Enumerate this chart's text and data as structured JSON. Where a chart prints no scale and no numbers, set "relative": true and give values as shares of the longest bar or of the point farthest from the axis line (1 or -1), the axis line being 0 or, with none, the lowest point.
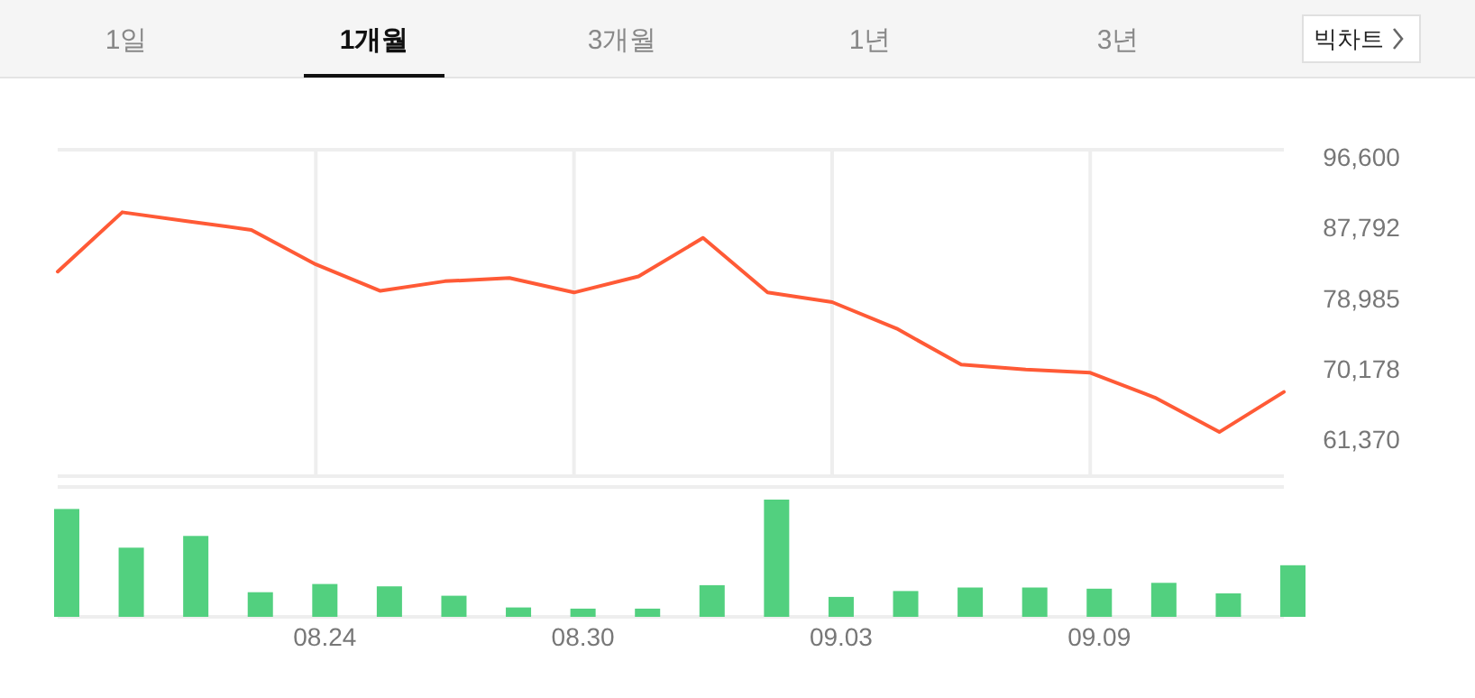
{
  "chart_data": [
    {
      "type": "other",
      "annotations": [
        "1일",
        "1개월",
        "3개월",
        "1년",
        "3년",
        "빅차트"
      ]
    },
    {
      "type": "line",
      "categories": [
        null,
        null,
        null,
        null,
        "08.24",
        null,
        null,
        null,
        "08.30",
        null,
        null,
        null,
        "09.03",
        null,
        null,
        null,
        "09.09",
        null,
        null,
        null
      ],
      "series": [
        {
          "color": "#ff5a36",
          "values": [
            82300,
            89700,
            88600,
            87500,
            83200,
            79900,
            81100,
            81500,
            79700,
            81700,
            86500,
            79700,
            78500,
            75200,
            70700,
            70100,
            69700,
            66600,
            62300,
            67300
          ]
        }
      ],
      "ylim": [
        56800,
        97500
      ],
      "yticks": [
        {
          "value": 96600,
          "label": "96,600"
        },
        {
          "value": 87792,
          "label": "87,792"
        },
        {
          "value": 78985,
          "label": "78,985"
        },
        {
          "value": 70178,
          "label": "70,178"
        },
        {
          "value": 61370,
          "label": "61,370"
        }
      ],
      "grid": "x",
      "tick_labels": "y",
      "marker": "none",
      "line_style": "solid"
    },
    {
      "type": "bar",
      "categories": [
        null,
        null,
        null,
        null,
        "08.24",
        null,
        null,
        null,
        "08.30",
        null,
        null,
        null,
        "09.03",
        null,
        null,
        null,
        "09.09",
        null,
        null,
        null
      ],
      "relative": true,
      "color": "#52d07f",
      "values": [
        0.92,
        0.59,
        0.69,
        0.21,
        0.28,
        0.26,
        0.18,
        0.08,
        0.07,
        0.07,
        0.27,
        1,
        0.17,
        0.22,
        0.25,
        0.25,
        0.24,
        0.29,
        0.2,
        0.44
      ],
      "tick_labels": "x",
      "grid": false
    }
  ]
}
